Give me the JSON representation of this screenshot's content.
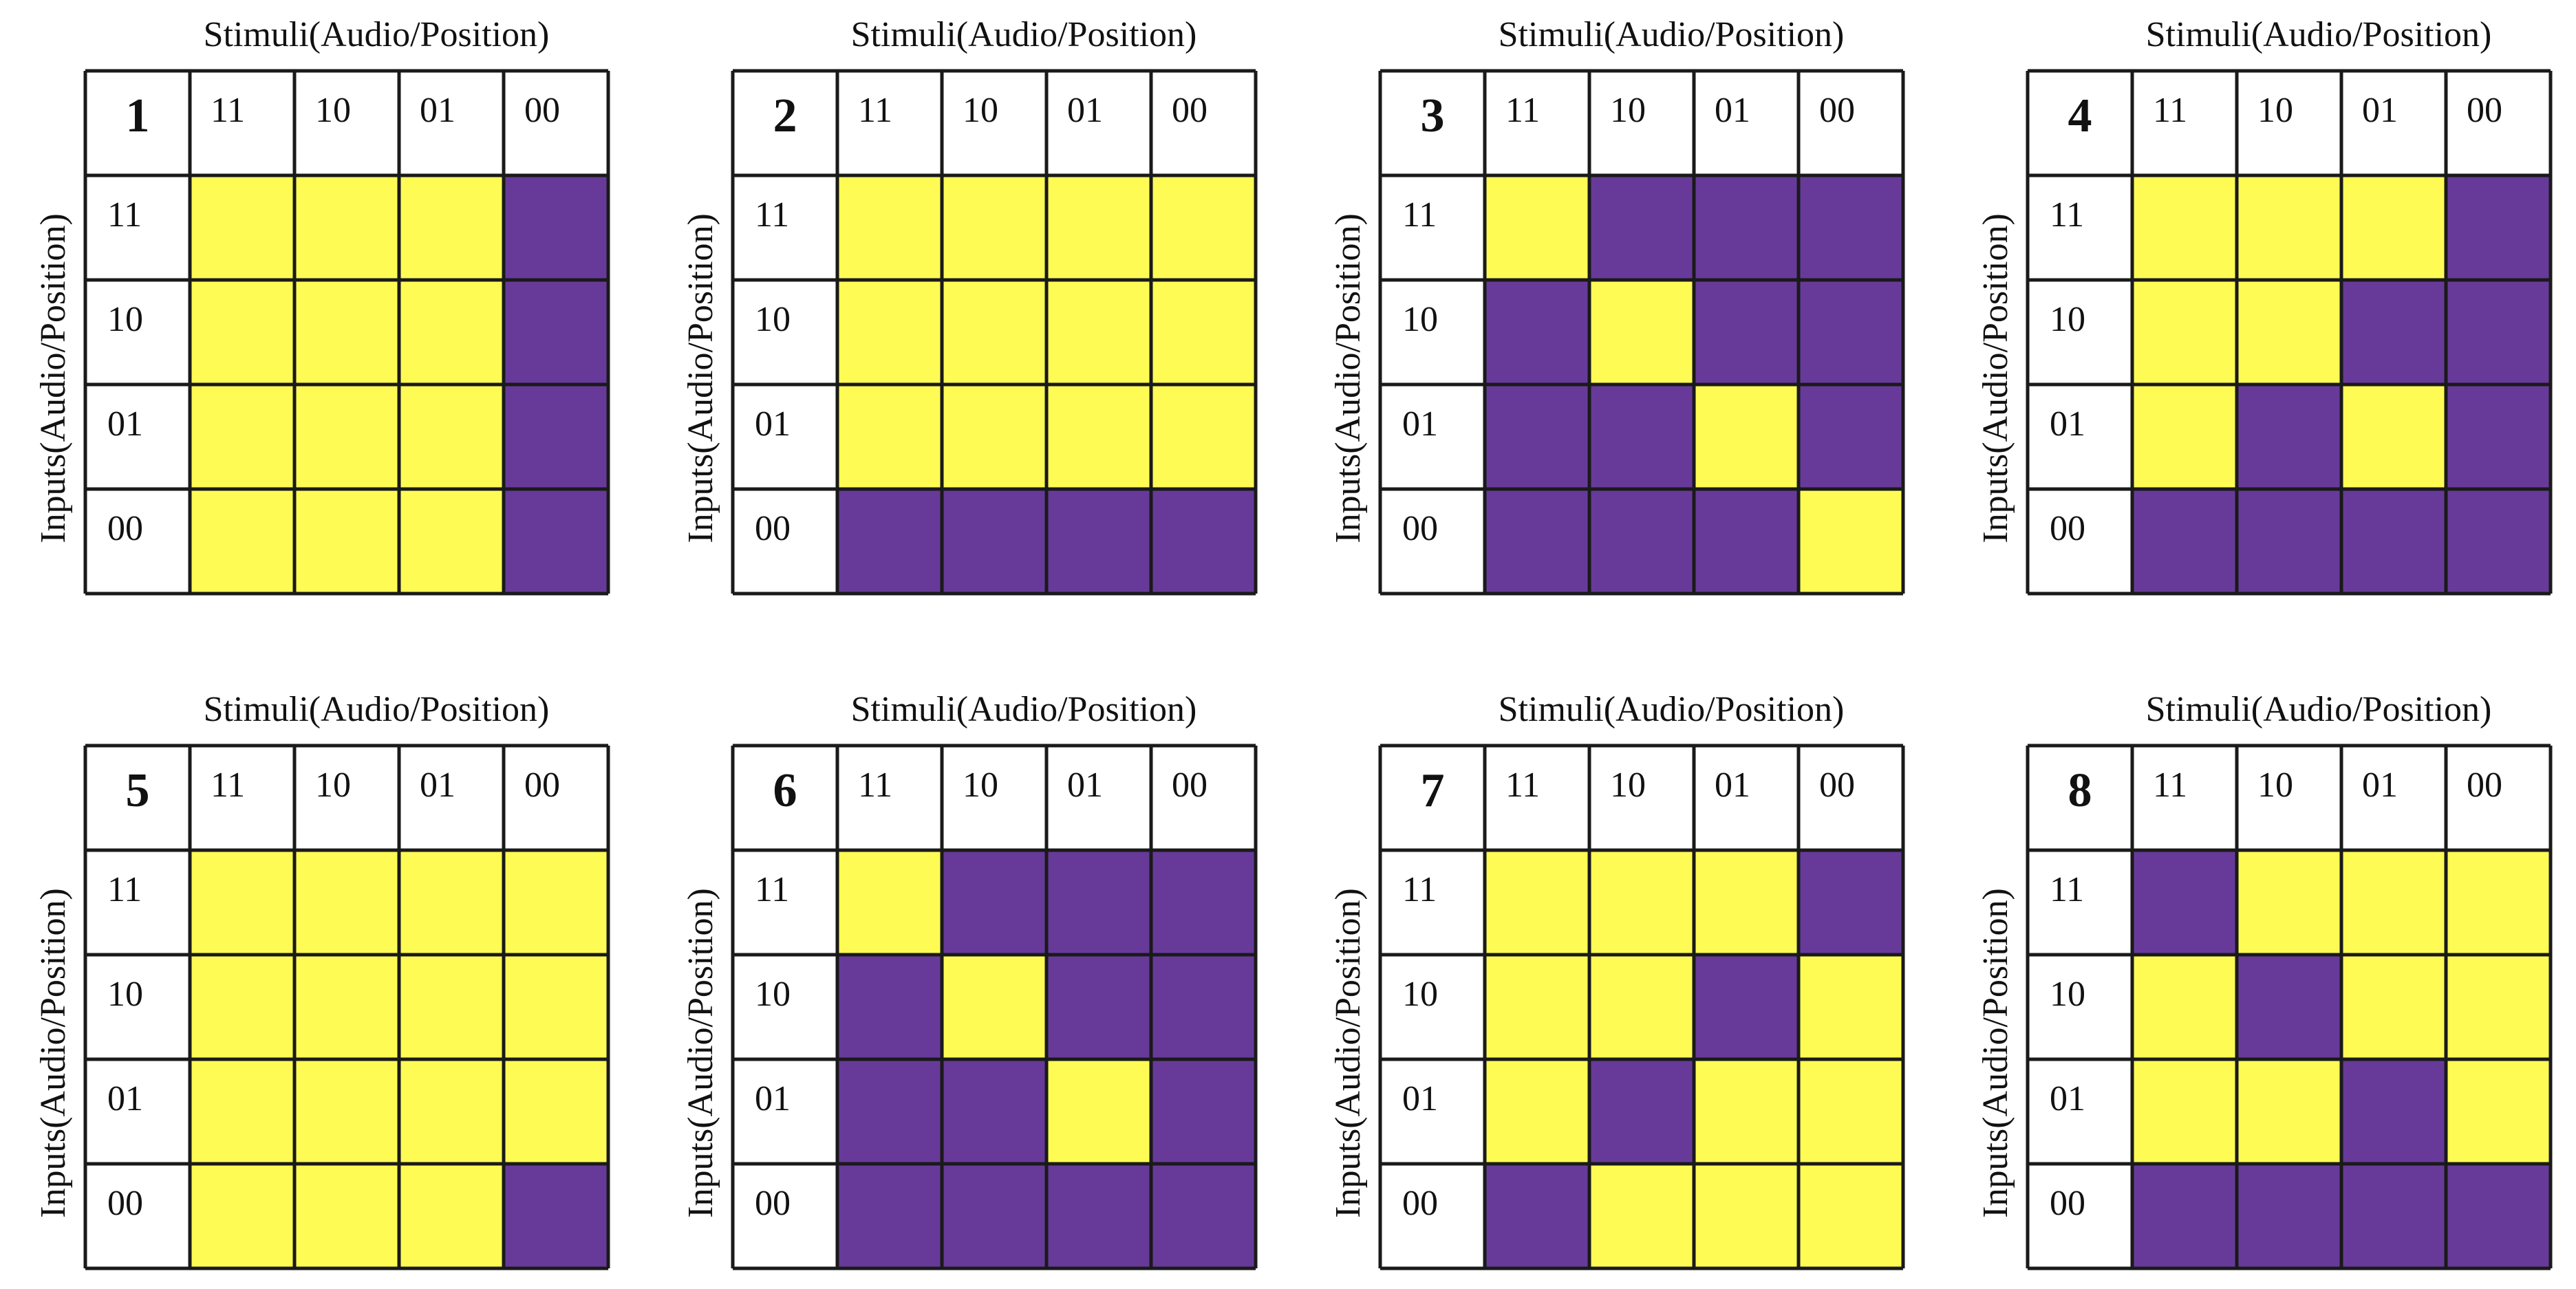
{
  "stimuli_label": "Stimuli(Audio/Position)",
  "inputs_label": "Inputs(Audio/Position)",
  "labels": [
    "11",
    "10",
    "01",
    "00"
  ],
  "colors": [
    "#673a9a",
    "#fefb55"
  ],
  "panels": [
    {
      "number": 1,
      "cells": [
        [
          1,
          1,
          1,
          0
        ],
        [
          1,
          1,
          1,
          0
        ],
        [
          1,
          1,
          1,
          0
        ],
        [
          1,
          1,
          1,
          0
        ]
      ]
    },
    {
      "number": 2,
      "cells": [
        [
          1,
          1,
          1,
          1
        ],
        [
          1,
          1,
          1,
          1
        ],
        [
          1,
          1,
          1,
          1
        ],
        [
          0,
          0,
          0,
          0
        ]
      ]
    },
    {
      "number": 3,
      "cells": [
        [
          1,
          0,
          0,
          0
        ],
        [
          0,
          1,
          0,
          0
        ],
        [
          0,
          0,
          1,
          0
        ],
        [
          0,
          0,
          0,
          1
        ]
      ]
    },
    {
      "number": 4,
      "cells": [
        [
          1,
          1,
          1,
          0
        ],
        [
          1,
          1,
          0,
          0
        ],
        [
          1,
          0,
          1,
          0
        ],
        [
          0,
          0,
          0,
          0
        ]
      ]
    },
    {
      "number": 5,
      "cells": [
        [
          1,
          1,
          1,
          1
        ],
        [
          1,
          1,
          1,
          1
        ],
        [
          1,
          1,
          1,
          1
        ],
        [
          1,
          1,
          1,
          0
        ]
      ]
    },
    {
      "number": 6,
      "cells": [
        [
          1,
          0,
          0,
          0
        ],
        [
          0,
          1,
          0,
          0
        ],
        [
          0,
          0,
          1,
          0
        ],
        [
          0,
          0,
          0,
          0
        ]
      ]
    },
    {
      "number": 7,
      "cells": [
        [
          1,
          1,
          1,
          0
        ],
        [
          1,
          1,
          0,
          1
        ],
        [
          1,
          0,
          1,
          1
        ],
        [
          0,
          1,
          1,
          1
        ]
      ]
    },
    {
      "number": 8,
      "cells": [
        [
          0,
          1,
          1,
          1
        ],
        [
          1,
          0,
          1,
          1
        ],
        [
          1,
          1,
          0,
          1
        ],
        [
          0,
          0,
          0,
          0
        ]
      ]
    }
  ]
}
